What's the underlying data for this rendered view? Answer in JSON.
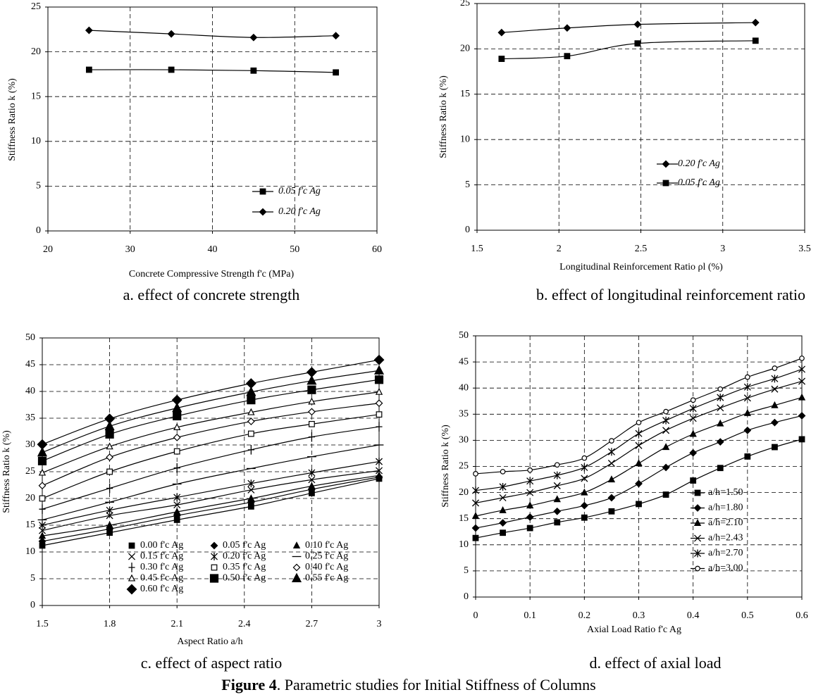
{
  "figure_caption": {
    "label": "Figure 4",
    "text": ". Parametric studies for Initial Stiffness of Columns"
  },
  "chart_data": [
    {
      "type": "line",
      "caption": "a. effect of concrete strength",
      "x_label": "Concrete Compressive Strength  f'c (MPa)",
      "y_label": "Stiffness Ratio k (%)",
      "x": [
        25,
        35,
        45,
        55
      ],
      "xlim": [
        20,
        60
      ],
      "xticks": [
        20,
        30,
        40,
        50,
        60
      ],
      "ylim": [
        0,
        25
      ],
      "yticks": [
        0,
        5,
        10,
        15,
        20,
        25
      ],
      "grid": true,
      "legend": "lower right",
      "series": [
        {
          "name": "0.05 f'c Ag",
          "color": "#000000",
          "marker": "square",
          "values": [
            18.0,
            18.0,
            17.9,
            17.7
          ]
        },
        {
          "name": "0.20 f'c Ag",
          "color": "#000000",
          "marker": "diamond",
          "values": [
            22.4,
            22.0,
            21.6,
            21.8
          ]
        }
      ]
    },
    {
      "type": "line",
      "caption": "b.    effect of longitudinal reinforcement ratio",
      "x_label": "Longitudinal Reinforcement Ratio ρl (%)",
      "y_label": "Stiffness Ratio k (%)",
      "x": [
        1.65,
        2.05,
        2.48,
        3.2
      ],
      "xlim": [
        1.5,
        3.5
      ],
      "xticks": [
        1.5,
        2,
        2.5,
        3,
        3.5
      ],
      "ylim": [
        0,
        25
      ],
      "yticks": [
        0,
        5,
        10,
        15,
        20,
        25
      ],
      "grid": true,
      "legend": "lower right",
      "series": [
        {
          "name": "0.20 f'c Ag",
          "color": "#000000",
          "marker": "diamond",
          "values": [
            21.8,
            22.3,
            22.7,
            22.9
          ]
        },
        {
          "name": "0.05 f'c Ag",
          "color": "#000000",
          "marker": "square",
          "values": [
            18.9,
            19.2,
            20.6,
            20.9
          ]
        }
      ]
    },
    {
      "type": "line",
      "caption": "c.    effect of aspect ratio",
      "x_label": "Aspect Ratio a/h",
      "y_label": "Stiffness Ratio k (%)",
      "x": [
        1.5,
        1.8,
        2.1,
        2.43,
        2.7,
        3
      ],
      "xlim": [
        1.5,
        3
      ],
      "xticks": [
        1.5,
        1.8,
        2.1,
        2.4,
        2.7,
        3
      ],
      "ylim": [
        0,
        50
      ],
      "yticks": [
        0,
        5,
        10,
        15,
        20,
        25,
        30,
        35,
        40,
        45,
        50
      ],
      "grid": true,
      "legend": "lower center",
      "series": [
        {
          "name": "0.00 f'c Ag",
          "color": "#000000",
          "marker": "square",
          "values": [
            11.2,
            13.6,
            16.0,
            18.5,
            21.0,
            23.7
          ]
        },
        {
          "name": "0.05 f'c Ag",
          "color": "#000000",
          "marker": "diamond",
          "values": [
            12.0,
            14.3,
            16.8,
            19.3,
            21.7,
            24.0
          ]
        },
        {
          "name": "0.10 f'c Ag",
          "color": "#000000",
          "marker": "triangle",
          "values": [
            13.0,
            15.0,
            17.5,
            20.0,
            22.3,
            24.3
          ]
        },
        {
          "name": "0.15 f'c Ag",
          "color": "#000000",
          "marker": "x",
          "values": [
            14.0,
            16.8,
            18.8,
            21.6,
            23.5,
            25.2
          ]
        },
        {
          "name": "0.20 f'c Ag",
          "color": "#000000",
          "marker": "asterisk",
          "values": [
            15.0,
            17.8,
            20.2,
            22.8,
            24.8,
            26.9
          ]
        },
        {
          "name": "0.25 f'c Ag",
          "color": "#000000",
          "marker": "dash",
          "values": [
            16.0,
            19.3,
            22.7,
            25.6,
            27.8,
            30.0
          ]
        },
        {
          "name": "0.30 f'c Ag",
          "color": "#000000",
          "marker": "plus",
          "values": [
            18.0,
            21.9,
            25.7,
            29.1,
            31.5,
            33.4
          ]
        },
        {
          "name": "0.35 f'c Ag",
          "color": "#000000",
          "marker": "open-square",
          "values": [
            20.0,
            25.0,
            28.8,
            32.1,
            33.9,
            35.7
          ]
        },
        {
          "name": "0.40 f'c Ag",
          "color": "#000000",
          "marker": "open-diamond",
          "values": [
            22.4,
            27.7,
            31.4,
            34.4,
            36.2,
            37.8
          ]
        },
        {
          "name": "0.45 f'c Ag",
          "color": "#000000",
          "marker": "open-triangle",
          "values": [
            24.8,
            29.7,
            33.3,
            36.1,
            38.1,
            39.9
          ]
        },
        {
          "name": "0.50 f'c Ag",
          "color": "#000000",
          "marker": "big-square",
          "values": [
            27.0,
            32.0,
            35.4,
            38.4,
            40.3,
            42.2
          ]
        },
        {
          "name": "0.55 f'c Ag",
          "color": "#000000",
          "marker": "big-triangle",
          "values": [
            28.6,
            33.5,
            36.9,
            39.9,
            42.0,
            43.9
          ]
        },
        {
          "name": "0.60 f'c Ag",
          "color": "#000000",
          "marker": "big-diamond",
          "values": [
            30.1,
            34.9,
            38.4,
            41.5,
            43.6,
            45.9
          ]
        }
      ]
    },
    {
      "type": "line",
      "caption": "d.    effect of axial load",
      "x_label": "Axial Load Ratio  f'c Ag",
      "y_label": "Stiffness Ratio  k  (%)",
      "x": [
        0,
        0.05,
        0.1,
        0.15,
        0.2,
        0.25,
        0.3,
        0.35,
        0.4,
        0.45,
        0.5,
        0.55,
        0.6
      ],
      "xlim": [
        0,
        0.6
      ],
      "xticks": [
        0,
        0.1,
        0.2,
        0.3,
        0.4,
        0.5,
        0.6
      ],
      "ylim": [
        0,
        50
      ],
      "yticks": [
        0,
        5,
        10,
        15,
        20,
        25,
        30,
        35,
        40,
        45,
        50
      ],
      "grid": true,
      "legend": "center right",
      "series": [
        {
          "name": "a/h=1.50",
          "color": "#000000",
          "marker": "square",
          "values": [
            11.3,
            12.3,
            13.2,
            14.3,
            15.2,
            16.4,
            17.8,
            19.6,
            22.3,
            24.7,
            26.9,
            28.7,
            30.2
          ]
        },
        {
          "name": "a/h=1.80",
          "color": "#000000",
          "marker": "diamond",
          "values": [
            13.2,
            14.2,
            15.3,
            16.4,
            17.5,
            19.0,
            21.7,
            24.8,
            27.6,
            29.7,
            31.9,
            33.4,
            34.7
          ]
        },
        {
          "name": "a/h=2.10",
          "color": "#000000",
          "marker": "triangle",
          "values": [
            15.5,
            16.6,
            17.5,
            18.7,
            20.0,
            22.5,
            25.6,
            28.7,
            31.2,
            33.2,
            35.2,
            36.7,
            38.2
          ]
        },
        {
          "name": "a/h=2.43",
          "color": "#000000",
          "marker": "x",
          "values": [
            18.0,
            19.0,
            20.0,
            21.3,
            22.7,
            25.6,
            29.0,
            31.9,
            34.2,
            36.2,
            38.1,
            39.8,
            41.3
          ]
        },
        {
          "name": "a/h=2.70",
          "color": "#000000",
          "marker": "asterisk",
          "values": [
            20.4,
            21.1,
            22.2,
            23.3,
            24.8,
            27.8,
            31.3,
            33.8,
            36.1,
            38.2,
            40.2,
            41.8,
            43.6
          ]
        },
        {
          "name": "a/h=3.00",
          "color": "#000000",
          "marker": "circle-open",
          "values": [
            23.6,
            24.0,
            24.3,
            25.3,
            26.6,
            29.9,
            33.4,
            35.5,
            37.7,
            39.8,
            42.1,
            43.8,
            45.7
          ]
        }
      ]
    }
  ]
}
